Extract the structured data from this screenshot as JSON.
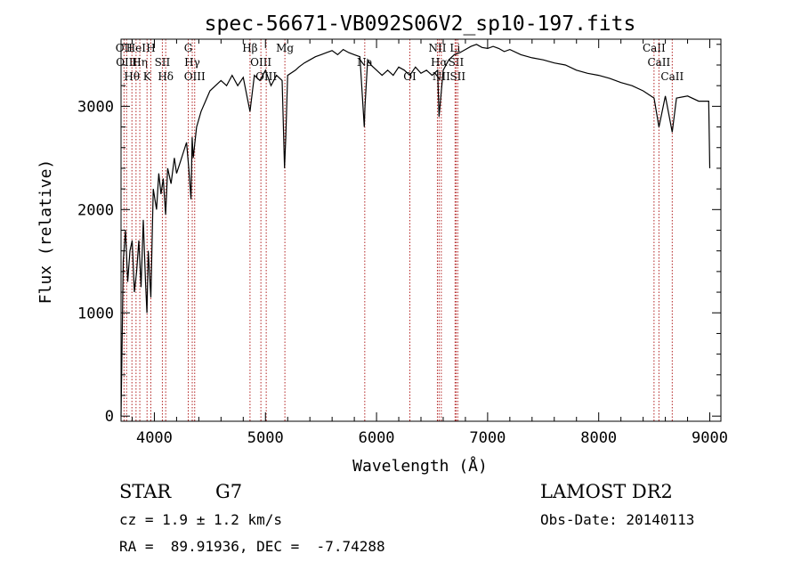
{
  "chart_data": {
    "type": "line",
    "title": "spec-56671-VB092S06V2_sp10-197.fits",
    "xlabel": "Wavelength (Å)",
    "ylabel": "Flux (relative)",
    "xlim": [
      3700,
      9100
    ],
    "ylim": [
      -50,
      3650
    ],
    "x_ticks": [
      4000,
      5000,
      6000,
      7000,
      8000,
      9000
    ],
    "y_ticks": [
      0,
      1000,
      2000,
      3000
    ],
    "grid": false,
    "series": [
      {
        "x": [
          3700,
          3720,
          3740,
          3760,
          3780,
          3800,
          3820,
          3840,
          3860,
          3880,
          3900,
          3920,
          3933,
          3945,
          3968,
          3990,
          4020,
          4040,
          4060,
          4080,
          4101,
          4120,
          4150,
          4180,
          4200,
          4230,
          4260,
          4290,
          4310,
          4330,
          4340,
          4350,
          4380,
          4420,
          4460,
          4500,
          4550,
          4600,
          4650,
          4700,
          4750,
          4800,
          4861,
          4900,
          4950,
          5000,
          5050,
          5100,
          5150,
          5172,
          5183,
          5200,
          5270,
          5300,
          5350,
          5400,
          5450,
          5500,
          5550,
          5600,
          5650,
          5700,
          5750,
          5800,
          5850,
          5890,
          5896,
          5920,
          5950,
          6000,
          6050,
          6100,
          6150,
          6200,
          6250,
          6300,
          6350,
          6400,
          6450,
          6500,
          6550,
          6563,
          6600,
          6650,
          6700,
          6750,
          6800,
          6850,
          6900,
          6950,
          7000,
          7050,
          7100,
          7150,
          7200,
          7300,
          7400,
          7500,
          7600,
          7700,
          7800,
          7900,
          8000,
          8100,
          8200,
          8300,
          8400,
          8498,
          8542,
          8600,
          8662,
          8700,
          8800,
          8900,
          8990,
          9000
        ],
        "y": [
          0,
          1500,
          1800,
          1300,
          1600,
          1700,
          1200,
          1400,
          1700,
          1250,
          1900,
          1300,
          1000,
          1600,
          1150,
          2200,
          2000,
          2350,
          2150,
          2300,
          1950,
          2400,
          2250,
          2500,
          2350,
          2450,
          2550,
          2650,
          2400,
          2100,
          2700,
          2500,
          2800,
          2950,
          3050,
          3150,
          3200,
          3250,
          3200,
          3300,
          3200,
          3280,
          2950,
          3300,
          3250,
          3350,
          3200,
          3300,
          3250,
          2400,
          2700,
          3300,
          3350,
          3380,
          3420,
          3450,
          3480,
          3500,
          3520,
          3540,
          3500,
          3550,
          3520,
          3500,
          3480,
          2800,
          3000,
          3450,
          3400,
          3350,
          3300,
          3350,
          3300,
          3380,
          3350,
          3300,
          3380,
          3320,
          3350,
          3300,
          3350,
          2900,
          3350,
          3450,
          3500,
          3520,
          3550,
          3580,
          3600,
          3570,
          3560,
          3580,
          3560,
          3530,
          3550,
          3500,
          3470,
          3450,
          3420,
          3400,
          3350,
          3320,
          3300,
          3270,
          3230,
          3200,
          3150,
          3080,
          2800,
          3100,
          2750,
          3080,
          3100,
          3050,
          3050,
          2400
        ]
      }
    ],
    "line_markers": [
      {
        "wave": 3727,
        "name": "OII"
      },
      {
        "wave": 3750,
        "name": "OIII"
      },
      {
        "wave": 3798,
        "name": "Hθ"
      },
      {
        "wave": 3835,
        "name": "HeI"
      },
      {
        "wave": 3869,
        "name": "Hη"
      },
      {
        "wave": 3934,
        "name": "K"
      },
      {
        "wave": 3968,
        "name": "H"
      },
      {
        "wave": 4072,
        "name": "SII"
      },
      {
        "wave": 4102,
        "name": "Hδ"
      },
      {
        "wave": 4305,
        "name": "G"
      },
      {
        "wave": 4341,
        "name": "Hγ"
      },
      {
        "wave": 4363,
        "name": "OIII"
      },
      {
        "wave": 4861,
        "name": "Hβ"
      },
      {
        "wave": 4959,
        "name": "OIII"
      },
      {
        "wave": 5007,
        "name": "OIII"
      },
      {
        "wave": 5175,
        "name": "Mg"
      },
      {
        "wave": 5894,
        "name": "Na"
      },
      {
        "wave": 6300,
        "name": "OI"
      },
      {
        "wave": 6548,
        "name": "NII"
      },
      {
        "wave": 6563,
        "name": "Hα"
      },
      {
        "wave": 6583,
        "name": "NII"
      },
      {
        "wave": 6707,
        "name": "Li"
      },
      {
        "wave": 6716,
        "name": "SII"
      },
      {
        "wave": 6731,
        "name": "SII"
      },
      {
        "wave": 8498,
        "name": "CaII"
      },
      {
        "wave": 8542,
        "name": "CaII"
      },
      {
        "wave": 8662,
        "name": "CaII"
      }
    ]
  },
  "info": {
    "class_label": "STAR",
    "subclass": "G7",
    "survey": "LAMOST DR2",
    "cz": "cz = 1.9 ± 1.2 km/s",
    "obs_date": "Obs-Date: 20140113",
    "radec": "RA =  89.91936, DEC =  -7.74288"
  },
  "colors": {
    "line_marker": "#b22222",
    "spectrum": "#000000"
  }
}
